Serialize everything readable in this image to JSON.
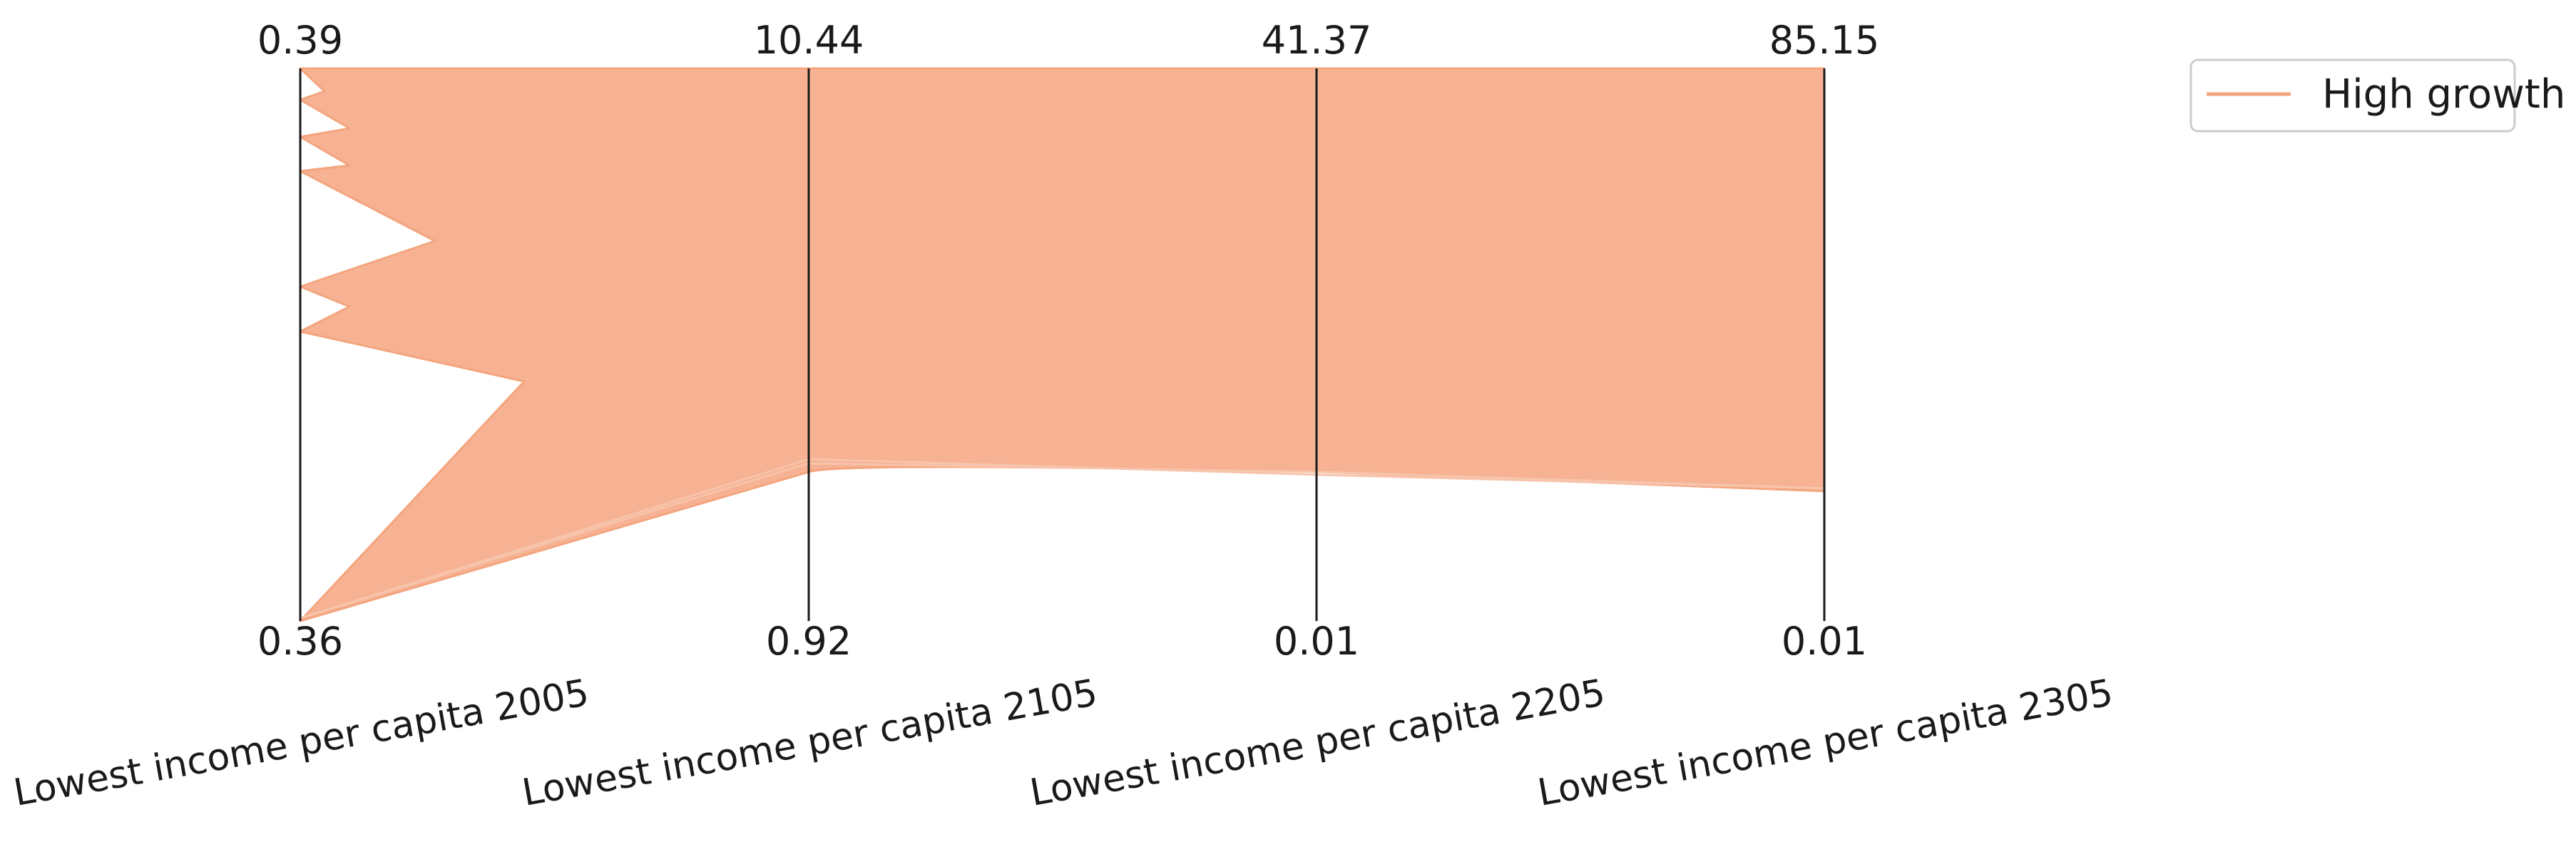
{
  "chart_data": {
    "type": "parallel_coordinates",
    "axes": [
      {
        "label": "Lowest income per capita 2005",
        "max": "0.39",
        "min": "0.36"
      },
      {
        "label": "Lowest income per capita 2105",
        "max": "10.44",
        "min": "0.92"
      },
      {
        "label": "Lowest income per capita 2205",
        "max": "41.37",
        "min": "0.01"
      },
      {
        "label": "Lowest income per capita 2305",
        "max": "85.15",
        "min": "0.01"
      }
    ],
    "series": [
      {
        "name": "High growth",
        "color": "#f4a57f",
        "normalized_band": {
          "upper": [
            1.0,
            1.0,
            1.0,
            1.0
          ],
          "lower": [
            0.0,
            0.28,
            0.27,
            0.235
          ]
        }
      }
    ],
    "legend": {
      "position": "top-right",
      "entries": [
        "High growth"
      ]
    },
    "grid": false
  }
}
